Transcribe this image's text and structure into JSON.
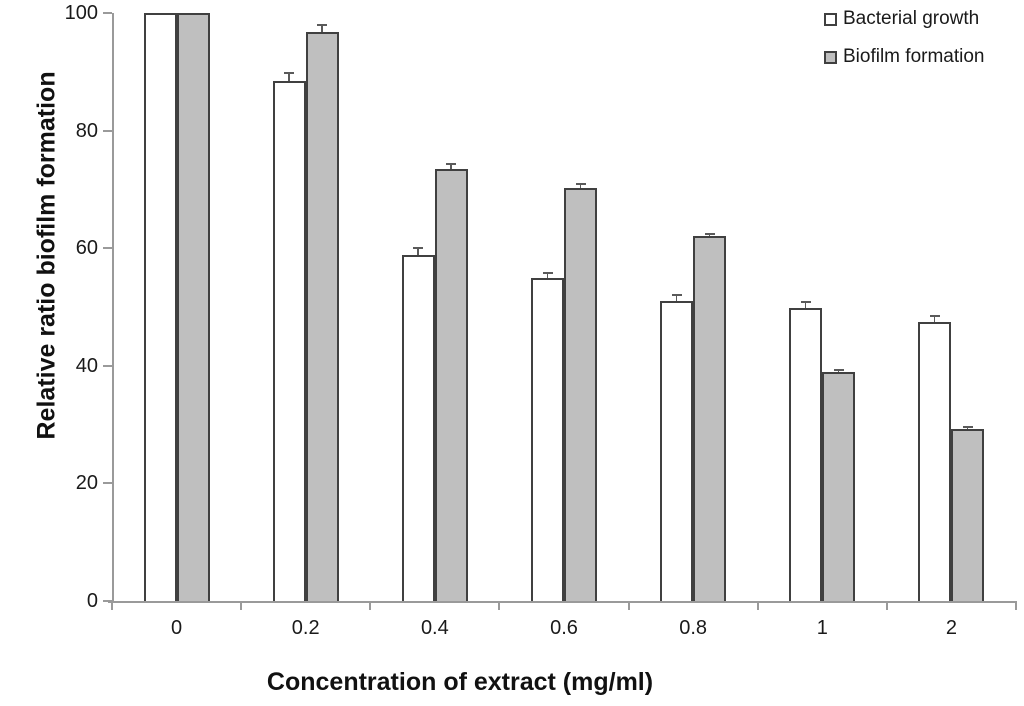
{
  "chart_data": {
    "type": "bar",
    "title": "",
    "xlabel": "Concentration of extract (mg/ml)",
    "ylabel": "Relative ratio biofilm formation",
    "categories": [
      "0",
      "0.2",
      "0.4",
      "0.6",
      "0.8",
      "1",
      "2"
    ],
    "y_ticks": [
      0,
      20,
      40,
      60,
      80,
      100
    ],
    "ylim": [
      0,
      100
    ],
    "grid": false,
    "legend_position": "top-right",
    "series": [
      {
        "name": "Bacterial growth",
        "fill": "#ffffff",
        "values": [
          100,
          88.4,
          58.8,
          54.9,
          51.0,
          49.8,
          47.4
        ],
        "errors": [
          0,
          1.4,
          1.2,
          0.9,
          1.0,
          1.0,
          1.1
        ]
      },
      {
        "name": "Biofilm formation",
        "fill": "#bfbfbf",
        "values": [
          100,
          96.8,
          73.5,
          70.2,
          62.1,
          38.9,
          29.3
        ],
        "errors": [
          0,
          1.2,
          0.8,
          0.7,
          0.4,
          0.4,
          0.3
        ]
      }
    ],
    "colors": {
      "bar_border": "#404040",
      "axis": "#9a9a9a",
      "error_bar": "#5a5a5a",
      "text": "#1a1a1a"
    }
  }
}
